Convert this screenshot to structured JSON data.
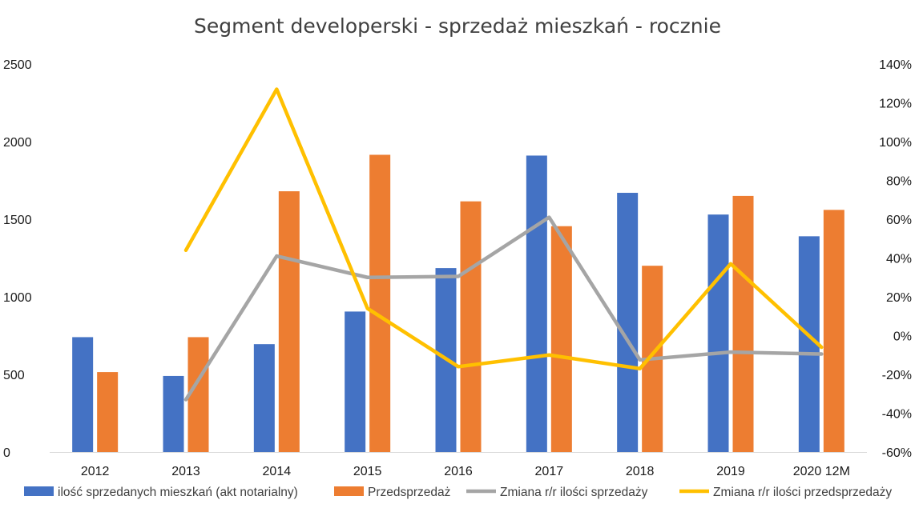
{
  "chart_data": {
    "type": "bar",
    "title": "Segment developerski - sprzedaż mieszkań - rocznie",
    "categories": [
      "2012",
      "2013",
      "2014",
      "2015",
      "2016",
      "2017",
      "2018",
      "2019",
      "2020 12M"
    ],
    "ylim_left": [
      0,
      2500
    ],
    "yticks_left": [
      "0",
      "500",
      "1000",
      "1500",
      "2000",
      "2500"
    ],
    "ylim_right": [
      -0.6,
      1.4
    ],
    "yticks_right": [
      "-60%",
      "-40%",
      "-20%",
      "0%",
      "20%",
      "40%",
      "60%",
      "80%",
      "100%",
      "120%",
      "140%"
    ],
    "grid": false,
    "legend_position": "bottom",
    "series": [
      {
        "name": "ilość sprzedanych mieszkań (akt notarialny)",
        "type": "bar",
        "axis": "left",
        "color": "#4472C4",
        "values": [
          740,
          490,
          695,
          905,
          1185,
          1910,
          1670,
          1530,
          1390
        ]
      },
      {
        "name": "Przedsprzedaż",
        "type": "bar",
        "axis": "left",
        "color": "#ED7D31",
        "values": [
          515,
          740,
          1680,
          1915,
          1615,
          1455,
          1200,
          1650,
          1560
        ]
      },
      {
        "name": "Zmiana r/r ilości sprzedaży",
        "type": "line",
        "axis": "right",
        "color": "#A5A5A5",
        "values": [
          null,
          -0.33,
          0.41,
          0.3,
          0.305,
          0.61,
          -0.125,
          -0.085,
          -0.095
        ]
      },
      {
        "name": "Zmiana r/r ilości przedsprzedaży",
        "type": "line",
        "axis": "right",
        "color": "#FFC000",
        "values": [
          null,
          0.44,
          1.27,
          0.14,
          -0.16,
          -0.1,
          -0.17,
          0.37,
          -0.06
        ]
      }
    ]
  }
}
